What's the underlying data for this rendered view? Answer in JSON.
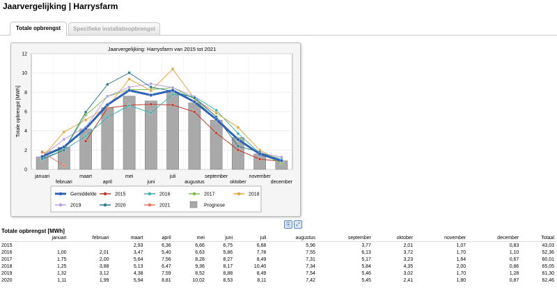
{
  "page": {
    "title": "Jaarvergelijking | Harrysfarm"
  },
  "tabs": [
    {
      "label": "Totale opbrengst",
      "active": true
    },
    {
      "label": "Specifieke installatieopbrengst",
      "active": false
    }
  ],
  "icons": {
    "export": "export-icon",
    "fullscreen": "fullscreen-icon"
  },
  "chart_data": {
    "type": "line",
    "title": "Jaarvergelijking: Harrysfarm van 2015 tot 2021",
    "xlabel": "",
    "ylabel": "Totale opbrengst [MWh]",
    "ylim": [
      0,
      12
    ],
    "yticks": [
      "0",
      "2",
      "4",
      "6",
      "8",
      "10",
      "12"
    ],
    "grid": true,
    "legend_position": "bottom",
    "categories": [
      "januari",
      "februari",
      "maart",
      "april",
      "mei",
      "juni",
      "juli",
      "augustus",
      "september",
      "oktober",
      "november",
      "december"
    ],
    "bars": {
      "name": "Prognose",
      "color": "#a9a9a9",
      "values": [
        1.3,
        2.3,
        4.2,
        6.4,
        7.6,
        7.1,
        8.0,
        6.9,
        5.1,
        3.3,
        1.6,
        0.9
      ]
    },
    "series": [
      {
        "name": "Gemiddelde",
        "color": "#2f63b5",
        "width": 3,
        "values": [
          1.33,
          2.33,
          4.23,
          6.7,
          8.2,
          7.7,
          8.2,
          7.0,
          5.2,
          3.1,
          1.6,
          0.9
        ]
      },
      {
        "name": "2015",
        "color": "#c0392b",
        "width": 1,
        "values": [
          null,
          null,
          2.93,
          6.36,
          6.66,
          6.75,
          6.68,
          5.96,
          3.77,
          2.01,
          1.07,
          0.83
        ]
      },
      {
        "name": "2016",
        "color": "#3cb2b2",
        "width": 1,
        "values": [
          1.0,
          2.01,
          3.47,
          5.4,
          6.63,
          5.86,
          7.78,
          7.55,
          6.13,
          3.72,
          1.7,
          1.1
        ]
      },
      {
        "name": "2017",
        "color": "#7cc04a",
        "width": 1,
        "values": [
          1.75,
          2.0,
          5.64,
          7.56,
          8.28,
          8.27,
          8.49,
          7.31,
          5.17,
          3.23,
          1.64,
          0.67
        ]
      },
      {
        "name": "2018",
        "color": "#e8a43a",
        "width": 1,
        "values": [
          1.25,
          3.88,
          5.13,
          6.47,
          9.36,
          8.17,
          10.4,
          7.34,
          5.84,
          4.35,
          2.0,
          0.86
        ]
      },
      {
        "name": "2019",
        "color": "#b79ee3",
        "width": 1,
        "values": [
          1.32,
          3.12,
          4.38,
          7.59,
          8.52,
          8.88,
          8.49,
          7.54,
          5.46,
          3.02,
          1.7,
          1.28
        ]
      },
      {
        "name": "2020",
        "color": "#2e7d8c",
        "width": 1,
        "values": [
          1.11,
          1.99,
          5.94,
          8.81,
          10.02,
          8.53,
          8.11,
          7.42,
          5.45,
          2.41,
          1.8,
          0.87
        ]
      },
      {
        "name": "2021",
        "color": "#e8775a",
        "width": 1,
        "values": [
          1.8,
          0.4,
          null,
          null,
          null,
          null,
          null,
          null,
          null,
          null,
          null,
          null
        ]
      }
    ],
    "legend": [
      "Gemiddelde",
      "2015",
      "2016",
      "2017",
      "2018",
      "2019",
      "2020",
      "2021",
      "Prognose"
    ]
  },
  "table": {
    "title": "Totale opbrengst [MWh]",
    "headers": [
      "",
      "januari",
      "februari",
      "maart",
      "april",
      "mei",
      "juni",
      "juli",
      "augustus",
      "september",
      "oktober",
      "november",
      "december",
      "Totaal"
    ],
    "rows": [
      [
        "2015",
        "",
        "",
        "2,93",
        "6,36",
        "6,66",
        "6,75",
        "6,68",
        "5,96",
        "3,77",
        "2,01",
        "1,07",
        "0,83",
        "43,03"
      ],
      [
        "2016",
        "1,00",
        "2,01",
        "3,47",
        "5,40",
        "6,63",
        "5,86",
        "7,78",
        "7,55",
        "6,13",
        "3,72",
        "1,70",
        "1,10",
        "52,36"
      ],
      [
        "2017",
        "1,75",
        "2,00",
        "5,64",
        "7,56",
        "8,28",
        "8,27",
        "8,49",
        "7,31",
        "5,17",
        "3,23",
        "1,64",
        "0,67",
        "60,01"
      ],
      [
        "2018",
        "1,25",
        "3,88",
        "5,13",
        "6,47",
        "9,36",
        "8,17",
        "10,40",
        "7,34",
        "5,84",
        "4,35",
        "2,00",
        "0,86",
        "65,05"
      ],
      [
        "2019",
        "1,32",
        "3,12",
        "4,38",
        "7,59",
        "8,52",
        "8,88",
        "8,49",
        "7,54",
        "5,46",
        "3,02",
        "1,70",
        "1,28",
        "61,30"
      ],
      [
        "2020",
        "1,11",
        "1,99",
        "5,94",
        "8,81",
        "10,02",
        "8,53",
        "8,11",
        "7,42",
        "5,45",
        "2,41",
        "1,80",
        "0,87",
        "62,46"
      ]
    ]
  }
}
